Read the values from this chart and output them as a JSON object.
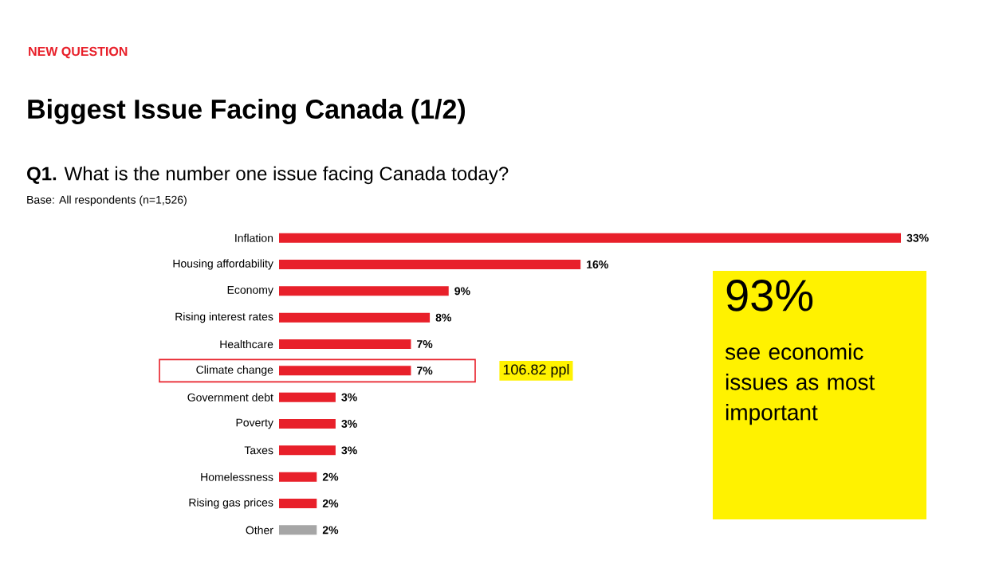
{
  "chart_data": {
    "type": "bar",
    "orientation": "horizontal",
    "title": "Biggest Issue Facing Canada (1/2)",
    "subtitle": "**Q1.** What is the number one issue facing Canada today?",
    "categories": [
      "Inflation",
      "Housing affordability",
      "Economy",
      "Rising interest rates",
      "Healthcare",
      "Climate change",
      "Government debt",
      "Poverty",
      "Taxes",
      "Homelessness",
      "Rising gas prices",
      "Other"
    ],
    "values": [
      33,
      16,
      9,
      8,
      7,
      7,
      3,
      3,
      3,
      2,
      2,
      2
    ],
    "value_labels": [
      "33%",
      "16%",
      "9%",
      "8%",
      "7%",
      "7%",
      "3%",
      "3%",
      "3%",
      "2%",
      "2%",
      "2%"
    ],
    "colors": [
      "#e8202a",
      "#e8202a",
      "#e8202a",
      "#e8202a",
      "#e8202a",
      "#e8202a",
      "#e8202a",
      "#e8202a",
      "#e8202a",
      "#e8202a",
      "#e8202a",
      "#a6a6a6"
    ],
    "annotations": [
      "NEW QUESTION",
      "Base: All respondents (n=1,526)",
      "106.82 ppl",
      "93%",
      "see economic issues as most important"
    ]
  }
}
